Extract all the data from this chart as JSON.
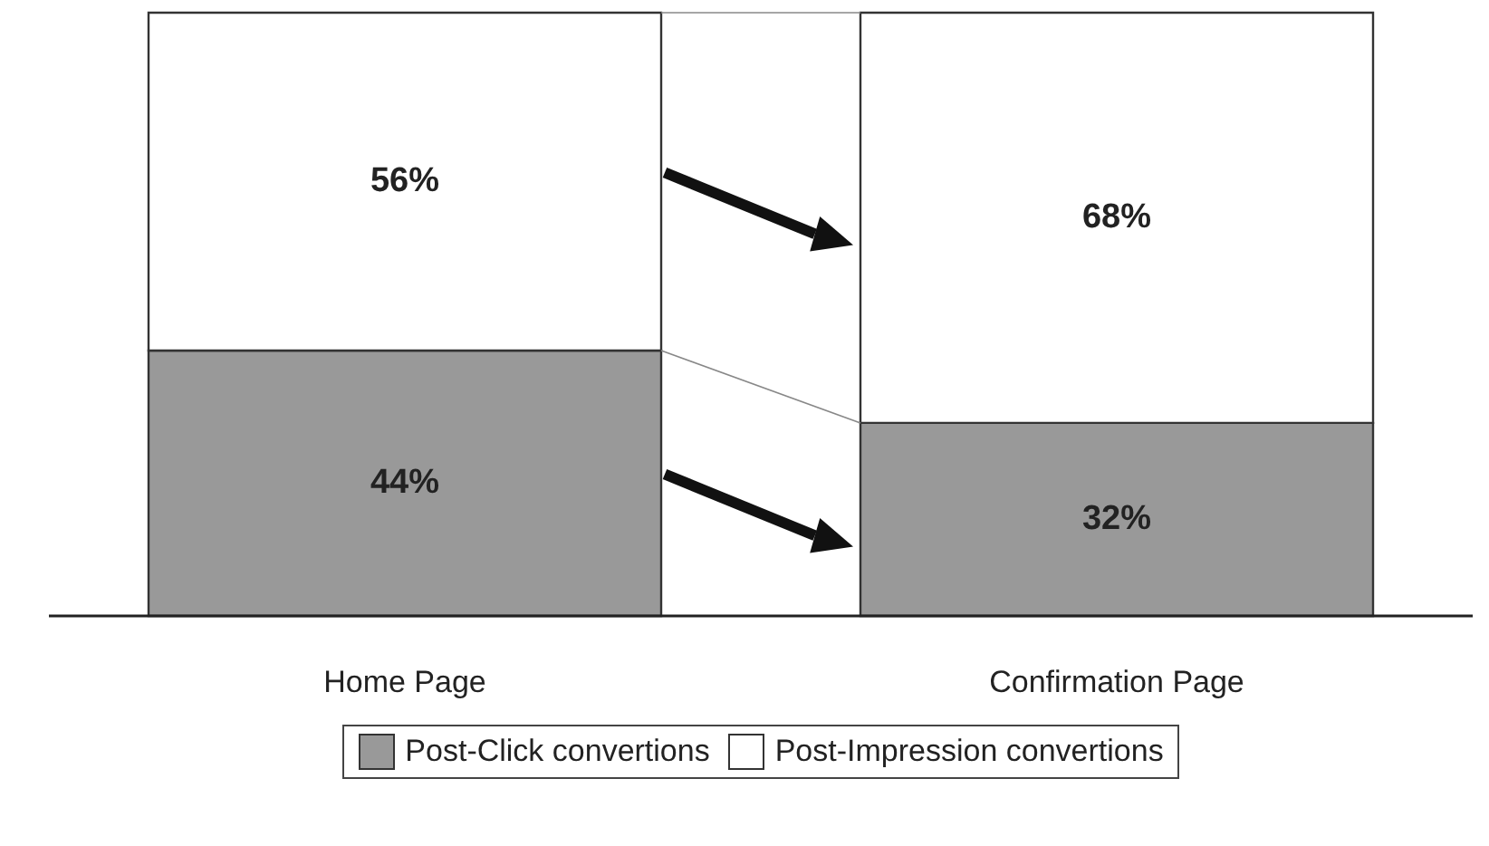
{
  "chart_data": {
    "type": "bar",
    "stacked": true,
    "categories": [
      "Home Page",
      "Confirmation Page"
    ],
    "series": [
      {
        "name": "Post-Click convertions",
        "color": "#999999",
        "values": [
          44,
          32
        ],
        "value_labels": [
          "44%",
          "32%"
        ]
      },
      {
        "name": "Post-Impression convertions",
        "color": "#ffffff",
        "values": [
          56,
          68
        ],
        "value_labels": [
          "56%",
          "68%"
        ]
      }
    ],
    "legend": "bottom",
    "grid": false
  }
}
